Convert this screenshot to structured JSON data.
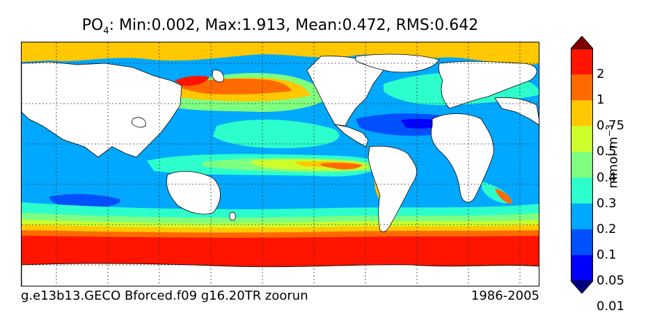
{
  "title": {
    "species_main": "PO",
    "species_sub": "4",
    "stats": ": Min:0.002, Max:1.913, Mean:0.472, RMS:0.642"
  },
  "footer": {
    "run_name": "g.e13b13.GECO Bforced.f09 g16.20TR zoorun",
    "period": "1986-2005"
  },
  "colorbar": {
    "units_main": "mmol m",
    "units_exp": "−3",
    "ticks": [
      "2",
      "1",
      "0.75",
      "0.5",
      "0.4",
      "0.3",
      "0.2",
      "0.1",
      "0.05",
      "0.01"
    ],
    "colors": [
      "#00007f",
      "#0000ff",
      "#0050ff",
      "#00a8ff",
      "#2cffcc",
      "#7fff7f",
      "#ccff2c",
      "#ffc800",
      "#ff6a00",
      "#ff1400",
      "#7f0000"
    ],
    "extend": "both"
  },
  "map": {
    "type": "filled-contour",
    "variable": "PO4",
    "land_color": "#ffffff",
    "grid": true
  }
}
